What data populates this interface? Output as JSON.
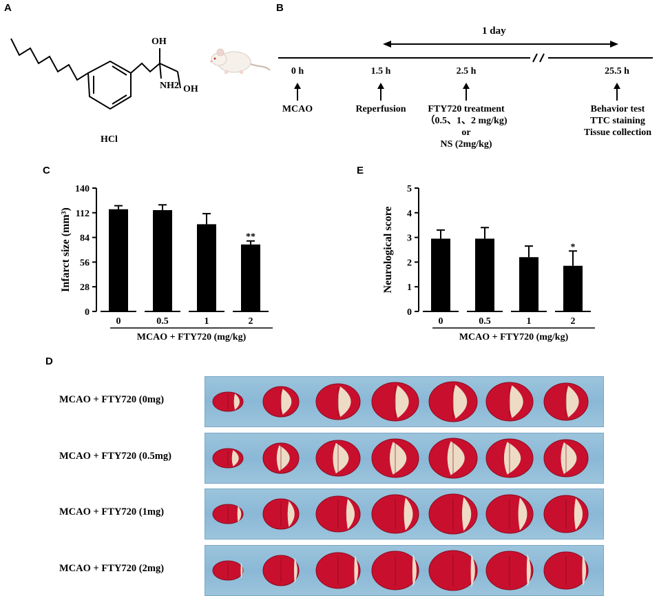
{
  "panels": {
    "a": "A",
    "b": "B",
    "c": "C",
    "d": "D",
    "e": "E"
  },
  "structure": {
    "oh1": "OH",
    "oh2": "OH",
    "nh2": "NH2",
    "salt": "HCl"
  },
  "timeline": {
    "span_label": "1 day",
    "events": [
      {
        "time": "0 h",
        "label_lines": [
          "MCAO"
        ]
      },
      {
        "time": "1.5 h",
        "label_lines": [
          "Reperfusion"
        ]
      },
      {
        "time": "2.5 h",
        "label_lines": [
          "FTY720 treatment",
          "（0.5、1、2 mg/kg)",
          "or",
          "NS (2mg/kg)"
        ]
      },
      {
        "time": "25.5 h",
        "label_lines": [
          "Behavior test",
          "TTC staining",
          "Tissue collection"
        ]
      }
    ]
  },
  "chart_data": [
    {
      "panel": "C",
      "type": "bar",
      "categories": [
        "0",
        "0.5",
        "1",
        "2"
      ],
      "values": [
        116,
        115,
        99,
        76
      ],
      "errors": [
        4,
        6,
        12,
        4
      ],
      "significance": [
        "",
        "",
        "",
        "**"
      ],
      "xlabel": "MCAO + FTY720 (mg/kg)",
      "ylabel": "Infarct size (mm³)",
      "ylim": [
        0,
        140
      ],
      "yticks": [
        "0",
        "28",
        "56",
        "84",
        "112",
        "140"
      ],
      "bar_color": "#000000"
    },
    {
      "panel": "E",
      "type": "bar",
      "categories": [
        "0",
        "0.5",
        "1",
        "2"
      ],
      "values": [
        2.95,
        2.95,
        2.2,
        1.85
      ],
      "errors": [
        0.35,
        0.45,
        0.45,
        0.6
      ],
      "significance": [
        "",
        "",
        "",
        "*"
      ],
      "xlabel": "MCAO + FTY720 (mg/kg)",
      "ylabel": "Neurological score",
      "ylim": [
        0,
        5
      ],
      "yticks": [
        "0",
        "1",
        "2",
        "3",
        "4",
        "5"
      ],
      "bar_color": "#000000"
    }
  ],
  "photo_rows": [
    {
      "label": "MCAO + FTY720 (0mg)",
      "slices": 7
    },
    {
      "label": "MCAO + FTY720 (0.5mg)",
      "slices": 7
    },
    {
      "label": "MCAO + FTY720 (1mg)",
      "slices": 7
    },
    {
      "label": "MCAO + FTY720 (2mg)",
      "slices": 7
    }
  ],
  "colors": {
    "tissue_red": "#c8102e",
    "infarct_pale": "#efe7cf",
    "background_blue": "#8ab8d6"
  }
}
